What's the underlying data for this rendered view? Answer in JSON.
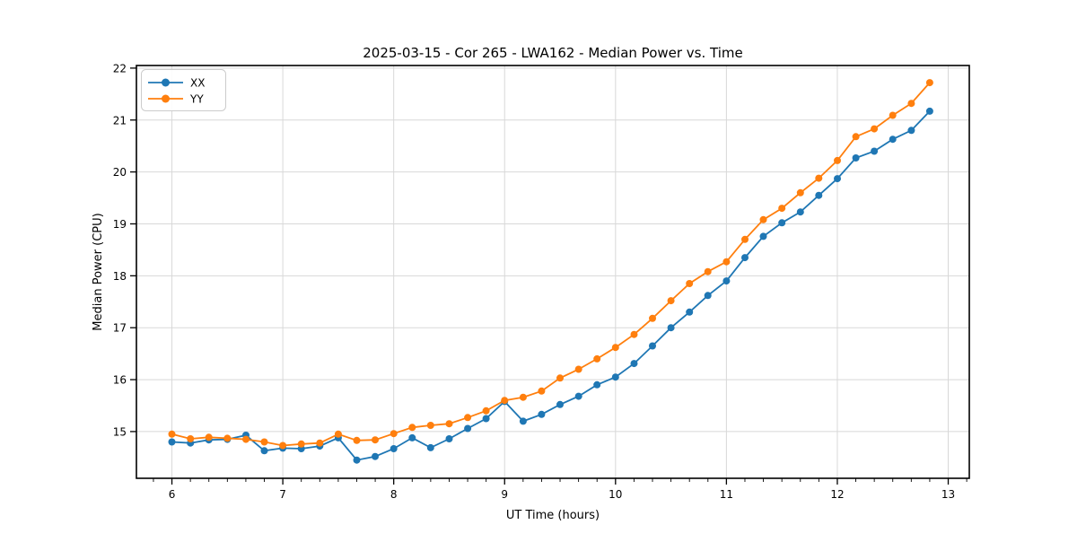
{
  "page": {
    "background": "#ffffff",
    "grid_color": "#d8d8d8",
    "spine_color": "#000000"
  },
  "chart_data": {
    "type": "line",
    "title": "2025-03-15 - Cor 265 - LWA162 - Median Power vs. Time",
    "xlabel": "UT Time (hours)",
    "ylabel": "Median Power (CPU)",
    "xlim": [
      5.68,
      13.19
    ],
    "ylim": [
      14.1,
      22.05
    ],
    "x_ticks": [
      6,
      7,
      8,
      9,
      10,
      11,
      12,
      13
    ],
    "y_ticks": [
      15,
      16,
      17,
      18,
      19,
      20,
      21,
      22
    ],
    "x_minor_step": 0.16667,
    "grid": true,
    "legend_position": "upper-left",
    "x": [
      6.0,
      6.167,
      6.333,
      6.5,
      6.667,
      6.833,
      7.0,
      7.167,
      7.333,
      7.5,
      7.667,
      7.833,
      8.0,
      8.167,
      8.333,
      8.5,
      8.667,
      8.833,
      9.0,
      9.167,
      9.333,
      9.5,
      9.667,
      9.833,
      10.0,
      10.167,
      10.333,
      10.5,
      10.667,
      10.833,
      11.0,
      11.167,
      11.333,
      11.5,
      11.667,
      11.833,
      12.0,
      12.167,
      12.333,
      12.5,
      12.667,
      12.833
    ],
    "series": [
      {
        "name": "XX",
        "color": "#1f77b4",
        "values": [
          14.8,
          14.78,
          14.84,
          14.85,
          14.93,
          14.63,
          14.68,
          14.67,
          14.72,
          14.88,
          14.45,
          14.52,
          14.67,
          14.88,
          14.69,
          14.86,
          15.06,
          15.25,
          15.58,
          15.2,
          15.33,
          15.52,
          15.68,
          15.9,
          16.05,
          16.31,
          16.65,
          17.0,
          17.3,
          17.62,
          17.9,
          18.35,
          18.76,
          19.02,
          19.23,
          19.55,
          19.87,
          20.27,
          20.4,
          20.63,
          20.8,
          21.17
        ]
      },
      {
        "name": "YY",
        "color": "#ff7f0e",
        "values": [
          14.95,
          14.86,
          14.89,
          14.87,
          14.85,
          14.8,
          14.73,
          14.76,
          14.78,
          14.95,
          14.83,
          14.84,
          14.96,
          15.08,
          15.12,
          15.15,
          15.27,
          15.4,
          15.6,
          15.66,
          15.78,
          16.03,
          16.2,
          16.4,
          16.62,
          16.87,
          17.18,
          17.52,
          17.85,
          18.08,
          18.27,
          18.7,
          19.08,
          19.3,
          19.6,
          19.88,
          20.22,
          20.68,
          20.83,
          21.09,
          21.32,
          21.72
        ]
      }
    ]
  }
}
